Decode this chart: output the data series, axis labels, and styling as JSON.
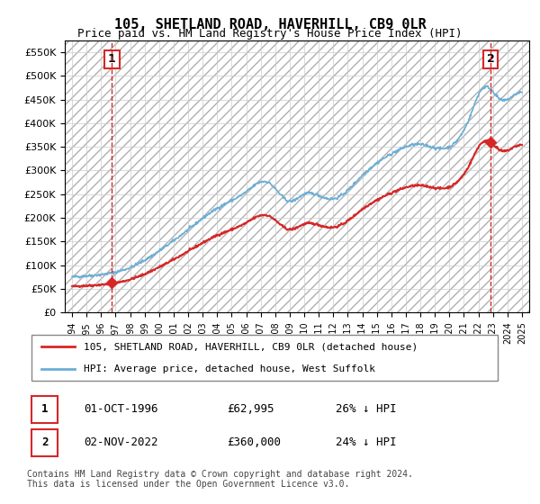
{
  "title": "105, SHETLAND ROAD, HAVERHILL, CB9 0LR",
  "subtitle": "Price paid vs. HM Land Registry's House Price Index (HPI)",
  "hpi_label": "HPI: Average price, detached house, West Suffolk",
  "property_label": "105, SHETLAND ROAD, HAVERHILL, CB9 0LR (detached house)",
  "footnote": "Contains HM Land Registry data © Crown copyright and database right 2024.\nThis data is licensed under the Open Government Licence v3.0.",
  "sale1": {
    "number": 1,
    "date": "01-OCT-1996",
    "price": 62995,
    "pct": "26% ↓ HPI"
  },
  "sale2": {
    "number": 2,
    "date": "02-NOV-2022",
    "price": 360000,
    "pct": "24% ↓ HPI"
  },
  "sale1_x": 1996.75,
  "sale2_x": 2022.83,
  "ylim": [
    0,
    575000
  ],
  "xlim_left": 1993.5,
  "xlim_right": 2025.5,
  "hpi_color": "#6baed6",
  "property_color": "#d62728",
  "vline_color": "#d62728",
  "background_hatch_color": "#d0d0d0",
  "grid_color": "#cccccc",
  "yticks": [
    0,
    50000,
    100000,
    150000,
    200000,
    250000,
    300000,
    350000,
    400000,
    450000,
    500000,
    550000
  ],
  "xticks": [
    1994,
    1995,
    1996,
    1997,
    1998,
    1999,
    2000,
    2001,
    2002,
    2003,
    2004,
    2005,
    2006,
    2007,
    2008,
    2009,
    2010,
    2011,
    2012,
    2013,
    2014,
    2015,
    2016,
    2017,
    2018,
    2019,
    2020,
    2021,
    2022,
    2023,
    2024,
    2025
  ]
}
